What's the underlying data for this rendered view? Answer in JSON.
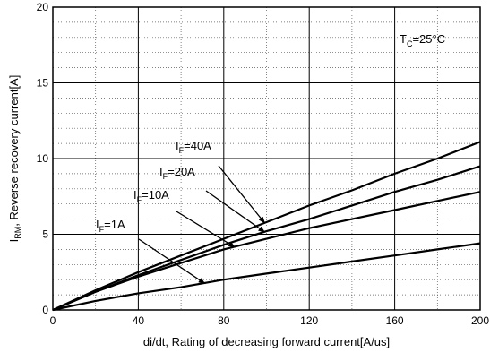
{
  "chart_data": {
    "type": "line",
    "x_label": "di/dt, Rating of decreasing forward current[A/us]",
    "y_label_parts": {
      "main": "I",
      "sub": "RM",
      "rest": ", Reverse recovery current[A]"
    },
    "xlim": [
      0,
      200
    ],
    "ylim": [
      0,
      20
    ],
    "x_ticks": [
      0,
      40,
      80,
      120,
      160,
      200
    ],
    "y_ticks": [
      0,
      5,
      10,
      15,
      20
    ],
    "x_minor_step": 20,
    "y_minor_step": 1,
    "grid": true,
    "annotation_tc": {
      "main": "T",
      "sub": "C",
      "rest": "=25°C"
    },
    "series": [
      {
        "name": "IF=40A",
        "label_main": "I",
        "label_sub": "F",
        "label_rest": "=40A",
        "x": [
          0,
          20,
          40,
          60,
          80,
          100,
          120,
          140,
          160,
          180,
          200
        ],
        "y": [
          0,
          1.3,
          2.5,
          3.6,
          4.7,
          5.8,
          6.9,
          7.9,
          9.0,
          10.0,
          11.1
        ]
      },
      {
        "name": "IF=20A",
        "label_main": "I",
        "label_sub": "F",
        "label_rest": "=20A",
        "x": [
          0,
          20,
          40,
          60,
          80,
          100,
          120,
          140,
          160,
          180,
          200
        ],
        "y": [
          0,
          1.2,
          2.3,
          3.3,
          4.3,
          5.2,
          6.0,
          6.9,
          7.8,
          8.6,
          9.5
        ]
      },
      {
        "name": "IF=10A",
        "label_main": "I",
        "label_sub": "F",
        "label_rest": "=10A",
        "x": [
          0,
          20,
          40,
          60,
          80,
          100,
          120,
          140,
          160,
          180,
          200
        ],
        "y": [
          0,
          1.2,
          2.2,
          3.1,
          4.0,
          4.7,
          5.4,
          6.0,
          6.6,
          7.2,
          7.8
        ]
      },
      {
        "name": "IF=1A",
        "label_main": "I",
        "label_sub": "F",
        "label_rest": "=1A",
        "x": [
          0,
          20,
          40,
          60,
          80,
          100,
          120,
          140,
          160,
          180,
          200
        ],
        "y": [
          0,
          0.6,
          1.1,
          1.5,
          2.0,
          2.4,
          2.8,
          3.2,
          3.6,
          4.0,
          4.4
        ]
      }
    ]
  }
}
